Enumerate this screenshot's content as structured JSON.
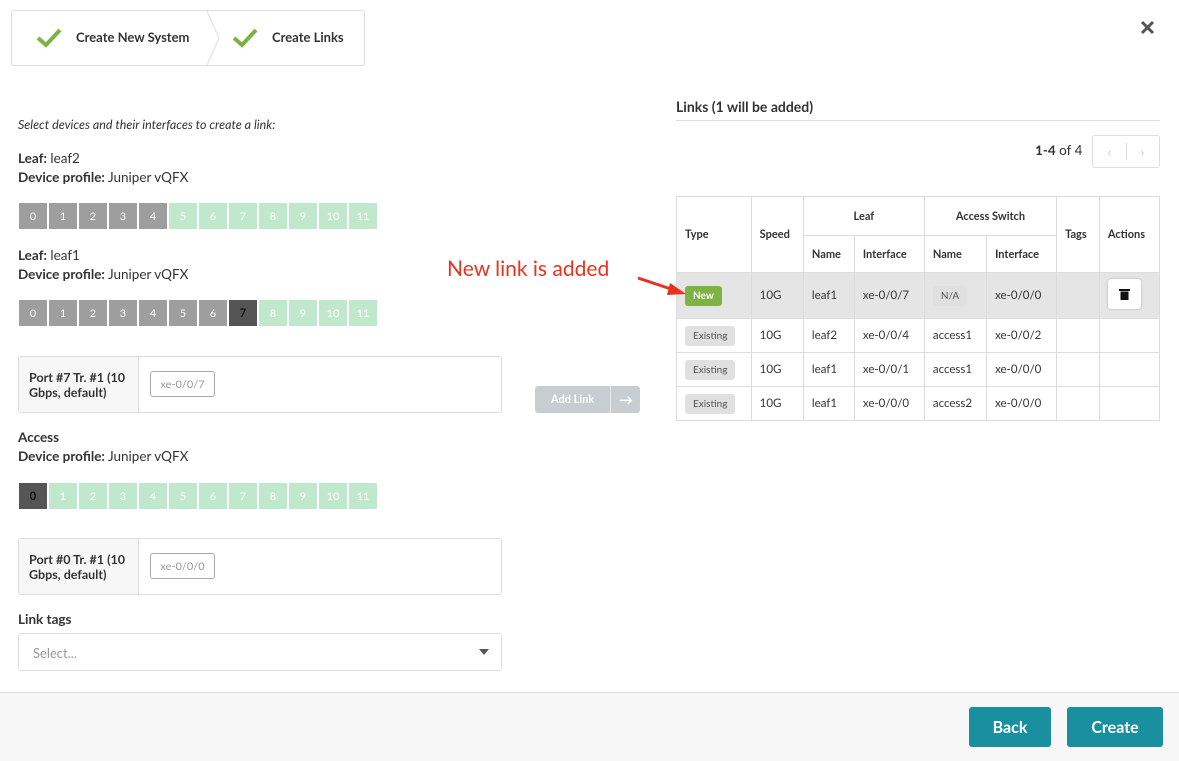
{
  "wizard_steps": [
    "Create New System",
    "Create Links"
  ],
  "instructions": "Select devices and their interfaces to create a link:",
  "devices": [
    {
      "role": "Leaf:",
      "name": "leaf2",
      "profile_label": "Device profile:",
      "profile": "Juniper vQFX",
      "ports": [
        0,
        1,
        2,
        3,
        4,
        5,
        6,
        7,
        8,
        9,
        10,
        11
      ],
      "port_colors": [
        "#9e9e9e",
        "#9e9e9e",
        "#9e9e9e",
        "#9e9e9e",
        "#9e9e9e",
        "#bfe8cc",
        "#bfe8cc",
        "#bfe8cc",
        "#bfe8cc",
        "#bfe8cc",
        "#bfe8cc",
        "#bfe8cc"
      ]
    },
    {
      "role": "Leaf:",
      "name": "leaf1",
      "profile_label": "Device profile:",
      "profile": "Juniper vQFX",
      "ports": [
        0,
        1,
        2,
        3,
        4,
        5,
        6,
        7,
        8,
        9,
        10,
        11
      ],
      "port_colors": [
        "#9e9e9e",
        "#9e9e9e",
        "#9e9e9e",
        "#9e9e9e",
        "#9e9e9e",
        "#9e9e9e",
        "#9e9e9e",
        "#555555",
        "#bfe8cc",
        "#bfe8cc",
        "#bfe8cc",
        "#bfe8cc"
      ],
      "port_form": {
        "label": "Port #7 Tr. #1 (10 Gbps, default)",
        "placeholder": "xe-0/0/7"
      }
    },
    {
      "role": "Access",
      "profile_label": "Device profile:",
      "profile": "Juniper vQFX",
      "ports": [
        0,
        1,
        2,
        3,
        4,
        5,
        6,
        7,
        8,
        9,
        10,
        11
      ],
      "port_colors": [
        "#555555",
        "#bfe8cc",
        "#bfe8cc",
        "#bfe8cc",
        "#bfe8cc",
        "#bfe8cc",
        "#bfe8cc",
        "#bfe8cc",
        "#bfe8cc",
        "#bfe8cc",
        "#bfe8cc",
        "#bfe8cc"
      ],
      "port_form": {
        "label": "Port #0 Tr. #1 (10 Gbps, default)",
        "placeholder": "xe-0/0/0"
      }
    }
  ],
  "add_link": "Add Link",
  "link_tags": {
    "label": "Link tags",
    "placeholder": "Select..."
  },
  "links": {
    "title": "Links (1 will be added)",
    "range": "1-4",
    "total": "of 4",
    "headers": {
      "type": "Type",
      "speed": "Speed",
      "leaf": "Leaf",
      "access": "Access Switch",
      "name": "Name",
      "interface": "Interface",
      "tags": "Tags",
      "actions": "Actions"
    },
    "rows": [
      [
        "New",
        "10G",
        "leaf1",
        "xe-0/0/7",
        "N/A",
        "xe-0/0/0"
      ],
      [
        "Existing",
        "10G",
        "leaf2",
        "xe-0/0/4",
        "access1",
        "xe-0/0/2"
      ],
      [
        "Existing",
        "10G",
        "leaf1",
        "xe-0/0/1",
        "access1",
        "xe-0/0/0"
      ],
      [
        "Existing",
        "10G",
        "leaf1",
        "xe-0/0/0",
        "access2",
        "xe-0/0/0"
      ]
    ]
  },
  "annotation": "New link is added",
  "footer": {
    "back": "Back",
    "create": "Create"
  }
}
